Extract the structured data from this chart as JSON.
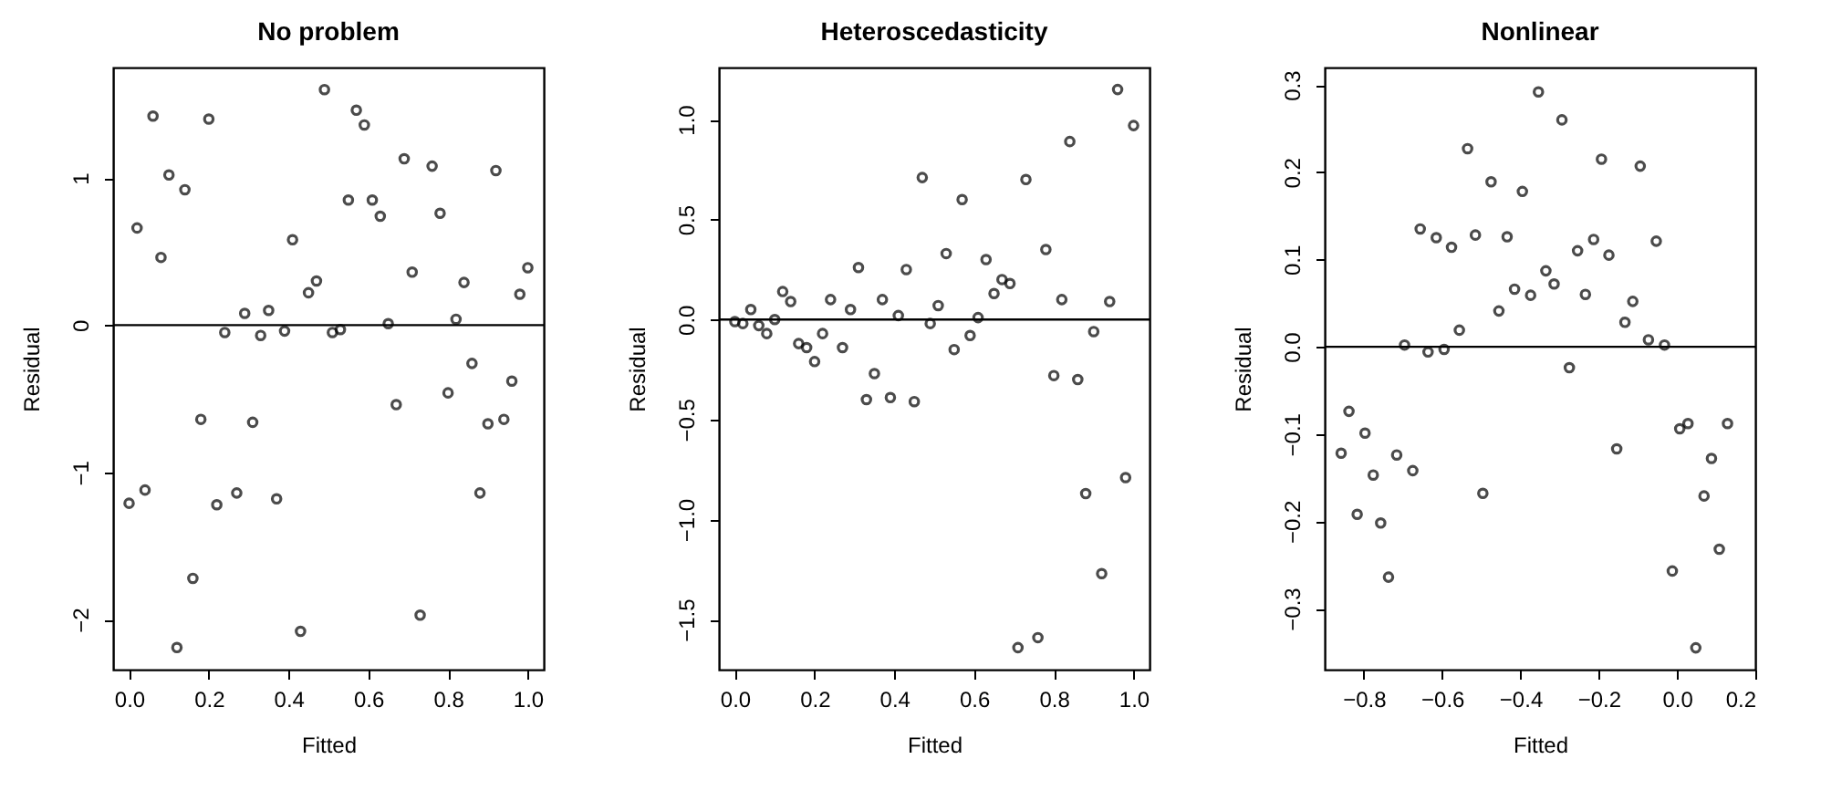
{
  "chart_data": [
    {
      "type": "scatter",
      "title": "No problem",
      "xlabel": "Fitted",
      "ylabel": "Residual",
      "marker": "circle",
      "grid": false,
      "x": [
        0,
        0.02,
        0.04,
        0.06,
        0.08,
        0.1,
        0.12,
        0.14,
        0.16,
        0.18,
        0.2,
        0.22,
        0.24,
        0.27,
        0.29,
        0.31,
        0.33,
        0.35,
        0.37,
        0.39,
        0.41,
        0.43,
        0.45,
        0.47,
        0.49,
        0.51,
        0.53,
        0.55,
        0.57,
        0.59,
        0.61,
        0.63,
        0.65,
        0.67,
        0.69,
        0.71,
        0.73,
        0.76,
        0.78,
        0.8,
        0.82,
        0.84,
        0.86,
        0.88,
        0.9,
        0.92,
        0.94,
        0.96,
        0.98,
        1.0
      ],
      "series": [
        {
          "color": "#000000",
          "values": [
            -1.21,
            0.66,
            -1.12,
            1.42,
            0.46,
            1.02,
            -2.19,
            0.92,
            -1.72,
            -0.64,
            1.4,
            -1.22,
            -0.05,
            -1.14,
            0.08,
            -0.66,
            -0.07,
            0.1,
            -1.18,
            -0.04,
            0.58,
            -2.08,
            0.22,
            0.3,
            1.6,
            -0.05,
            -0.03,
            0.85,
            1.46,
            1.36,
            0.85,
            0.74,
            0.01,
            -0.54,
            1.13,
            0.36,
            -1.97,
            1.08,
            0.76,
            -0.46,
            0.04,
            0.29,
            -0.26,
            -1.14,
            -0.67,
            1.05,
            -0.64,
            -0.38,
            0.21,
            0.39
          ]
        }
      ],
      "xlim": [
        -0.04,
        1.04
      ],
      "ylim": [
        -2.34,
        1.75
      ],
      "xticks": [
        {
          "value": 0,
          "label": "0.0"
        },
        {
          "value": 0.2,
          "label": "0.2"
        },
        {
          "value": 0.4,
          "label": "0.4"
        },
        {
          "value": 0.6,
          "label": "0.6"
        },
        {
          "value": 0.8,
          "label": "0.8"
        },
        {
          "value": 1,
          "label": "1.0"
        }
      ],
      "yticks": [
        {
          "value": -2,
          "label": "−2"
        },
        {
          "value": -1,
          "label": "−1"
        },
        {
          "value": 0,
          "label": "0"
        },
        {
          "value": 1,
          "label": "1"
        }
      ],
      "ref_lines": [
        {
          "axis": "y",
          "value": 0,
          "color": "#000000"
        }
      ]
    },
    {
      "type": "scatter",
      "title": "Heteroscedasticity",
      "xlabel": "Fitted",
      "ylabel": "Residual",
      "marker": "circle",
      "grid": false,
      "x": [
        0,
        0.02,
        0.04,
        0.06,
        0.08,
        0.1,
        0.12,
        0.14,
        0.16,
        0.18,
        0.2,
        0.22,
        0.24,
        0.27,
        0.29,
        0.31,
        0.33,
        0.35,
        0.37,
        0.39,
        0.41,
        0.43,
        0.45,
        0.47,
        0.49,
        0.51,
        0.53,
        0.55,
        0.57,
        0.59,
        0.61,
        0.63,
        0.65,
        0.67,
        0.69,
        0.71,
        0.73,
        0.76,
        0.78,
        0.8,
        0.82,
        0.84,
        0.86,
        0.88,
        0.9,
        0.92,
        0.94,
        0.96,
        0.98,
        1.0
      ],
      "series": [
        {
          "color": "#000000",
          "values": [
            -0.01,
            -0.02,
            0.05,
            -0.03,
            -0.07,
            0.0,
            0.14,
            0.09,
            -0.12,
            -0.14,
            -0.21,
            -0.07,
            0.1,
            -0.14,
            0.05,
            0.26,
            -0.4,
            -0.27,
            0.1,
            -0.39,
            0.02,
            0.25,
            -0.41,
            0.71,
            -0.02,
            0.07,
            0.33,
            -0.15,
            0.6,
            -0.08,
            0.01,
            0.3,
            0.13,
            0.2,
            0.18,
            -1.64,
            0.7,
            -1.59,
            0.35,
            -0.28,
            0.1,
            0.89,
            -0.3,
            -0.87,
            -0.06,
            -1.27,
            0.09,
            1.15,
            -0.79,
            0.97
          ]
        }
      ],
      "xlim": [
        -0.04,
        1.04
      ],
      "ylim": [
        -1.75,
        1.26
      ],
      "xticks": [
        {
          "value": 0,
          "label": "0.0"
        },
        {
          "value": 0.2,
          "label": "0.2"
        },
        {
          "value": 0.4,
          "label": "0.4"
        },
        {
          "value": 0.6,
          "label": "0.6"
        },
        {
          "value": 0.8,
          "label": "0.8"
        },
        {
          "value": 1,
          "label": "1.0"
        }
      ],
      "yticks": [
        {
          "value": -1.5,
          "label": "−1.5"
        },
        {
          "value": -1,
          "label": "−1.0"
        },
        {
          "value": -0.5,
          "label": "−0.5"
        },
        {
          "value": 0,
          "label": "0.0"
        },
        {
          "value": 0.5,
          "label": "0.5"
        },
        {
          "value": 1,
          "label": "1.0"
        }
      ],
      "ref_lines": [
        {
          "axis": "y",
          "value": 0,
          "color": "#000000"
        }
      ]
    },
    {
      "type": "scatter",
      "title": "Nonlinear",
      "xlabel": "Fitted",
      "ylabel": "Residual",
      "marker": "circle",
      "grid": false,
      "x": [
        -0.858,
        -0.838,
        -0.817,
        -0.797,
        -0.776,
        -0.757,
        -0.737,
        -0.716,
        -0.696,
        -0.675,
        -0.656,
        -0.636,
        -0.615,
        -0.595,
        -0.576,
        -0.556,
        -0.535,
        -0.515,
        -0.496,
        -0.475,
        -0.455,
        -0.434,
        -0.415,
        -0.395,
        -0.374,
        -0.354,
        -0.335,
        -0.314,
        -0.294,
        -0.275,
        -0.254,
        -0.234,
        -0.213,
        -0.193,
        -0.174,
        -0.154,
        -0.133,
        -0.113,
        -0.094,
        -0.073,
        -0.053,
        -0.032,
        -0.012,
        0.007,
        0.028,
        0.048,
        0.069,
        0.088,
        0.108,
        0.129
      ],
      "series": [
        {
          "color": "#000000",
          "values": [
            -0.122,
            -0.074,
            -0.192,
            -0.099,
            -0.147,
            -0.202,
            -0.264,
            -0.124,
            0.002,
            -0.142,
            0.135,
            -0.006,
            0.125,
            -0.003,
            0.114,
            0.019,
            0.227,
            0.128,
            -0.168,
            0.189,
            0.041,
            0.126,
            0.066,
            0.178,
            0.059,
            0.292,
            0.087,
            0.072,
            0.26,
            -0.024,
            0.11,
            0.06,
            0.123,
            0.215,
            0.105,
            -0.117,
            0.028,
            0.052,
            0.207,
            0.008,
            0.121,
            0.002,
            -0.257,
            -0.094,
            -0.088,
            -0.345,
            -0.171,
            -0.128,
            -0.232,
            -0.088
          ]
        }
      ],
      "xlim": [
        -0.9,
        0.2
      ],
      "ylim": [
        -0.37,
        0.32
      ],
      "xticks": [
        {
          "value": -0.8,
          "label": "−0.8"
        },
        {
          "value": -0.6,
          "label": "−0.6"
        },
        {
          "value": -0.4,
          "label": "−0.4"
        },
        {
          "value": -0.2,
          "label": "−0.2"
        },
        {
          "value": 0,
          "label": "0.0"
        },
        {
          "value": 0.2,
          "label": "0.2"
        }
      ],
      "yticks": [
        {
          "value": -0.3,
          "label": "−0.3"
        },
        {
          "value": -0.2,
          "label": "−0.2"
        },
        {
          "value": -0.1,
          "label": "−0.1"
        },
        {
          "value": 0,
          "label": "0.0"
        },
        {
          "value": 0.1,
          "label": "0.1"
        },
        {
          "value": 0.2,
          "label": "0.2"
        },
        {
          "value": 0.3,
          "label": "0.3"
        }
      ],
      "ref_lines": [
        {
          "axis": "y",
          "value": 0,
          "color": "#000000"
        }
      ]
    }
  ]
}
